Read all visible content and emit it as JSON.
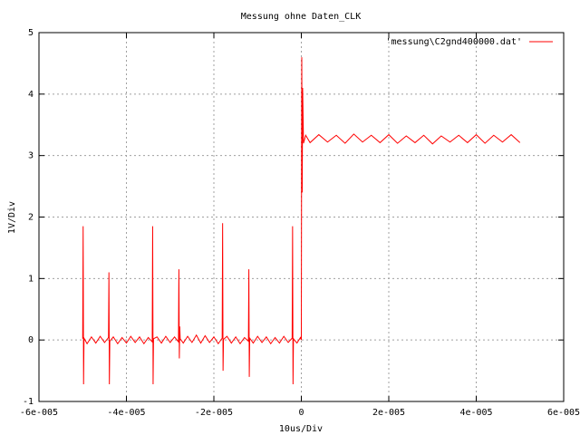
{
  "chart_data": {
    "type": "line",
    "title": "Messung ohne Daten_CLK",
    "x_label": "10us/Div",
    "y_label": "1V/Div",
    "x": [
      -5e-05,
      -4.99e-05,
      -4.98e-05,
      -4.97e-05,
      -4.9e-05,
      -4.8e-05,
      -4.7e-05,
      -4.6e-05,
      -4.5e-05,
      -4.41e-05,
      -4.4e-05,
      -4.39e-05,
      -4.38e-05,
      -4.3e-05,
      -4.2e-05,
      -4.1e-05,
      -4e-05,
      -3.9e-05,
      -3.8e-05,
      -3.7e-05,
      -3.6e-05,
      -3.5e-05,
      -3.41e-05,
      -3.4e-05,
      -3.39e-05,
      -3.38e-05,
      -3.3e-05,
      -3.2e-05,
      -3.1e-05,
      -3e-05,
      -2.9e-05,
      -2.81e-05,
      -2.8e-05,
      -2.79e-05,
      -2.78e-05,
      -2.77e-05,
      -2.7e-05,
      -2.6e-05,
      -2.5e-05,
      -2.4e-05,
      -2.3e-05,
      -2.2e-05,
      -2.1e-05,
      -2e-05,
      -1.9e-05,
      -1.81e-05,
      -1.8e-05,
      -1.79e-05,
      -1.78e-05,
      -1.7e-05,
      -1.6e-05,
      -1.5e-05,
      -1.4e-05,
      -1.3e-05,
      -1.21e-05,
      -1.2e-05,
      -1.19e-05,
      -1.18e-05,
      -1.1e-05,
      -1e-05,
      -9e-06,
      -8e-06,
      -7e-06,
      -6e-06,
      -5e-06,
      -4e-06,
      -3e-06,
      -2.1e-06,
      -2e-06,
      -1.9e-06,
      -1.8e-06,
      -1e-06,
      -2e-07,
      0,
      1e-07,
      2e-07,
      3e-07,
      5e-07,
      1e-06,
      2e-06,
      4e-06,
      6e-06,
      8e-06,
      1e-05,
      1.2e-05,
      1.4e-05,
      1.6e-05,
      1.8e-05,
      2e-05,
      2.2e-05,
      2.4e-05,
      2.6e-05,
      2.8e-05,
      3e-05,
      3.2e-05,
      3.4e-05,
      3.6e-05,
      3.8e-05,
      4e-05,
      4.2e-05,
      4.4e-05,
      4.6e-05,
      4.8e-05,
      5e-05
    ],
    "series": [
      {
        "name": "'messung\\C2gnd400000.dat'",
        "color": "#ff0000",
        "values": [
          0.02,
          1.85,
          -0.72,
          0.03,
          -0.06,
          0.05,
          -0.05,
          0.06,
          -0.04,
          0.04,
          1.1,
          -0.72,
          -0.02,
          0.05,
          -0.06,
          0.04,
          -0.05,
          0.06,
          -0.04,
          0.05,
          -0.06,
          0.04,
          -0.03,
          1.85,
          -0.72,
          0.02,
          0.05,
          -0.05,
          0.06,
          -0.04,
          0.05,
          -0.03,
          1.15,
          -0.3,
          0.22,
          0.02,
          -0.05,
          0.06,
          -0.04,
          0.08,
          -0.05,
          0.07,
          -0.04,
          0.05,
          -0.06,
          0.03,
          1.9,
          -0.5,
          0.01,
          0.06,
          -0.05,
          0.05,
          -0.06,
          0.04,
          -0.02,
          1.15,
          -0.6,
          0.03,
          -0.05,
          0.06,
          -0.04,
          0.05,
          -0.06,
          0.04,
          -0.05,
          0.06,
          -0.04,
          0.03,
          1.85,
          -0.72,
          0.02,
          -0.05,
          0.04,
          0,
          4.6,
          2.4,
          4.1,
          3.2,
          3.33,
          3.21,
          3.34,
          3.22,
          3.33,
          3.2,
          3.35,
          3.22,
          3.33,
          3.21,
          3.34,
          3.2,
          3.32,
          3.21,
          3.33,
          3.19,
          3.32,
          3.22,
          3.33,
          3.21,
          3.34,
          3.2,
          3.33,
          3.22,
          3.34,
          3.21
        ]
      }
    ],
    "xlim": [
      -6e-05,
      6e-05
    ],
    "xticks": [
      {
        "value": -6e-05,
        "label": "-6e-005"
      },
      {
        "value": -4e-05,
        "label": "-4e-005"
      },
      {
        "value": -2e-05,
        "label": "-2e-005"
      },
      0,
      {
        "value": 2e-05,
        "label": "2e-005"
      },
      {
        "value": 4e-05,
        "label": "4e-005"
      },
      {
        "value": 6e-05,
        "label": "6e-005"
      }
    ],
    "ylim": [
      -1,
      5
    ],
    "yticks": [
      -1,
      0,
      1,
      2,
      3,
      4,
      5
    ],
    "grid": true,
    "legend": "top-right"
  }
}
